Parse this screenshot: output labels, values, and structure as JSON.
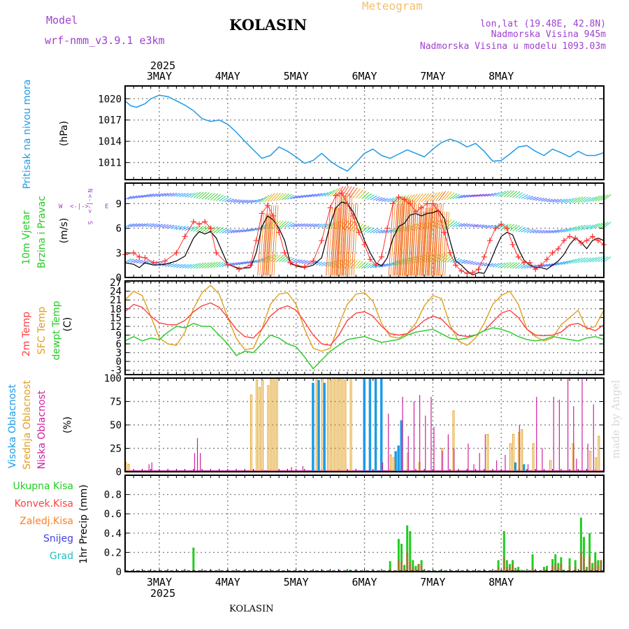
{
  "header": {
    "model_label": "Model",
    "model_name": "wrf-nmm_v3.9.1  e3km",
    "location": "KOLASIN",
    "title": "Meteogram",
    "coords": "lon,lat (19.48E, 42.8N)",
    "elevation": "Nadmorska Visina 945m",
    "model_elevation": "Nadmorska Visina u modelu 1093.03m",
    "footer_location": "KOLASIN",
    "watermark": "made by Angel"
  },
  "colors": {
    "model": "#a040d0",
    "title": "#f0c070",
    "pressure": "#1e9be6",
    "wind_label": "#22cc22",
    "wind_dir": "#a040d0",
    "t2m": "#ff4040",
    "sfc": "#e0a020",
    "dewpt": "#22cc22",
    "cloud_high": "#1e9be6",
    "cloud_mid": "#e0a020",
    "cloud_low": "#d020a0",
    "precip_total": "#22cc22",
    "precip_conv": "#ff4040",
    "precip_frz": "#ff8020",
    "precip_snow": "#4040e0",
    "precip_hail": "#20c0c0"
  },
  "time_axis": {
    "year": "2025",
    "days": [
      "3MAY",
      "4MAY",
      "5MAY",
      "6MAY",
      "7MAY",
      "8MAY"
    ]
  },
  "chart_data": [
    {
      "id": "pressure",
      "type": "line",
      "title": "Pritisak na nivou mora",
      "ylabel": "(hPa)",
      "yticks": [
        1011,
        1014,
        1017,
        1020
      ],
      "ylim": [
        1008.6,
        1021.8
      ],
      "x_hours": [
        0,
        2,
        4,
        7,
        9,
        12,
        15,
        18,
        21,
        24,
        27,
        30,
        33,
        36,
        39,
        42,
        45,
        48,
        51,
        54,
        57,
        60,
        63,
        66,
        69,
        72,
        75,
        78,
        81,
        84,
        87,
        90,
        93,
        96,
        99,
        102,
        105,
        108,
        111,
        114,
        117,
        120,
        123,
        126,
        129,
        132,
        135,
        138,
        141,
        144,
        147,
        150,
        153,
        156,
        159,
        162,
        165,
        168
      ],
      "values": [
        1019.7,
        1019.0,
        1018.8,
        1019.3,
        1020.0,
        1020.5,
        1020.3,
        1019.7,
        1019.1,
        1018.3,
        1017.2,
        1016.8,
        1017.0,
        1016.4,
        1015.3,
        1014.0,
        1012.8,
        1011.6,
        1012.0,
        1013.2,
        1012.6,
        1011.8,
        1010.9,
        1011.3,
        1012.3,
        1011.2,
        1010.4,
        1009.8,
        1011.0,
        1012.3,
        1012.9,
        1012.0,
        1011.6,
        1012.2,
        1012.8,
        1012.3,
        1011.8,
        1012.9,
        1013.8,
        1014.3,
        1013.9,
        1013.2,
        1013.7,
        1012.6,
        1011.2,
        1011.3,
        1012.2,
        1013.2,
        1013.4,
        1012.6,
        1012.0,
        1012.9,
        1012.4,
        1011.8,
        1012.6,
        1012.0,
        1012.0,
        1012.4
      ]
    },
    {
      "id": "wind",
      "type": "line",
      "title_line1": "10m Vjetar",
      "title_line2": "Brzina i Pravac",
      "ylabel": "(m/s)",
      "yticks": [
        0,
        3,
        6,
        9
      ],
      "ylim": [
        0,
        11.5
      ],
      "legend_west": "W",
      "legend_east": "E",
      "legend_north": "N",
      "legend_south": "S",
      "legend_arrows": "<-|->",
      "x_hours": [
        0,
        3,
        5,
        7,
        10,
        14,
        18,
        21,
        24,
        26,
        28,
        30,
        32,
        36,
        40,
        44,
        46,
        48,
        50,
        52,
        54,
        56,
        58,
        60,
        63,
        66,
        69,
        72,
        74,
        76,
        78,
        80,
        82,
        84,
        86,
        88,
        90,
        92,
        94,
        96,
        98,
        100,
        102,
        104,
        106,
        108,
        110,
        112,
        114,
        116,
        118,
        120,
        122,
        124,
        126,
        128,
        130,
        132,
        134,
        136,
        138,
        140,
        142,
        144,
        146,
        148,
        150,
        152,
        154,
        156,
        158,
        160,
        162,
        164,
        166,
        168
      ],
      "speed": [
        1.8,
        1.6,
        1.2,
        1.8,
        1.5,
        1.6,
        2.0,
        2.6,
        4.8,
        5.6,
        5.3,
        5.6,
        4.8,
        1.6,
        1.1,
        1.2,
        3.0,
        6.2,
        7.5,
        7.0,
        6.0,
        4.5,
        1.7,
        1.4,
        1.2,
        1.5,
        2.4,
        6.5,
        8.5,
        9.2,
        9.0,
        8.0,
        6.5,
        4.5,
        3.0,
        1.8,
        1.4,
        2.4,
        4.8,
        6.2,
        6.6,
        7.6,
        7.8,
        7.5,
        7.8,
        7.9,
        8.2,
        7.2,
        4.5,
        2.0,
        1.5,
        0.8,
        0.3,
        0.6,
        0.5,
        1.8,
        3.5,
        5.0,
        5.5,
        5.2,
        3.5,
        2.1,
        1.5,
        1.2,
        1.2,
        1.0,
        1.5,
        2.0,
        2.8,
        4.0,
        4.8,
        4.3,
        3.5,
        4.5,
        4.8,
        4.5
      ],
      "gust": [
        2.8,
        3.0,
        2.5,
        2.4,
        1.8,
        2.0,
        3.0,
        5.0,
        6.8,
        6.5,
        6.8,
        6.0,
        3.0,
        1.6,
        1.0,
        1.5,
        4.5,
        7.8,
        8.8,
        7.5,
        5.5,
        3.0,
        1.8,
        1.5,
        1.3,
        2.0,
        4.5,
        8.5,
        10.0,
        10.3,
        9.0,
        7.5,
        5.5,
        4.0,
        2.2,
        1.5,
        2.5,
        6.0,
        9.0,
        9.8,
        9.5,
        9.0,
        8.0,
        8.5,
        9.0,
        9.0,
        8.0,
        5.5,
        3.0,
        1.5,
        0.8,
        0.5,
        0.6,
        1.0,
        2.5,
        4.5,
        6.0,
        6.5,
        6.0,
        4.0,
        2.5,
        1.8,
        1.8,
        1.0,
        1.5,
        2.2,
        3.0,
        3.5,
        4.5,
        5.0,
        4.8,
        4.2,
        4.5,
        5.0,
        4.5,
        4.0
      ]
    },
    {
      "id": "temperature",
      "type": "line",
      "title_t2m": "2m Temp",
      "title_sfc": "SFC Temp",
      "title_dewpt": "dewpt Temp",
      "ylabel": "(C)",
      "yticks": [
        -3,
        0,
        3,
        6,
        9,
        12,
        15,
        18,
        21,
        24,
        27
      ],
      "ylim": [
        -4.5,
        27.5
      ],
      "x_hours": [
        0,
        3,
        6,
        9,
        12,
        15,
        18,
        21,
        24,
        27,
        30,
        33,
        36,
        39,
        42,
        45,
        48,
        51,
        54,
        57,
        60,
        63,
        66,
        69,
        72,
        75,
        78,
        81,
        84,
        87,
        90,
        93,
        96,
        99,
        102,
        105,
        108,
        111,
        114,
        117,
        120,
        123,
        126,
        129,
        132,
        135,
        138,
        141,
        144,
        147,
        150,
        153,
        156,
        159,
        162,
        165,
        168
      ],
      "t2m": [
        17.0,
        19.5,
        18.5,
        15.5,
        13.2,
        12.6,
        12.5,
        14.0,
        17.0,
        19.0,
        20.0,
        18.5,
        15.0,
        11.0,
        8.5,
        8.0,
        11.0,
        15.5,
        18.0,
        19.0,
        17.5,
        13.5,
        9.0,
        6.0,
        5.5,
        9.0,
        14.0,
        16.5,
        17.0,
        15.5,
        12.0,
        9.5,
        9.0,
        9.5,
        11.5,
        14.0,
        15.5,
        14.5,
        11.5,
        9.0,
        8.5,
        9.0,
        10.5,
        13.5,
        16.5,
        17.5,
        15.0,
        11.0,
        9.0,
        8.8,
        9.0,
        10.0,
        12.5,
        13.0,
        11.5,
        10.5,
        12.5
      ],
      "sfc": [
        21.0,
        24.0,
        22.5,
        15.5,
        8.0,
        6.0,
        5.5,
        10.0,
        18.0,
        23.5,
        26.0,
        23.0,
        15.0,
        8.0,
        4.0,
        4.5,
        11.0,
        19.5,
        23.0,
        23.5,
        19.5,
        11.0,
        4.5,
        3.5,
        4.5,
        12.5,
        19.5,
        23.0,
        23.5,
        20.5,
        13.0,
        8.5,
        8.0,
        9.5,
        13.0,
        19.0,
        22.5,
        21.5,
        12.5,
        7.0,
        5.5,
        8.0,
        13.0,
        19.5,
        22.5,
        24.0,
        19.5,
        11.0,
        8.5,
        7.0,
        8.0,
        12.5,
        15.0,
        17.5,
        11.0,
        12.0,
        17.5
      ],
      "dewpt": [
        7.0,
        8.5,
        7.0,
        8.0,
        7.5,
        10.0,
        12.0,
        11.5,
        13.0,
        12.0,
        12.0,
        9.0,
        6.0,
        2.0,
        3.5,
        3.0,
        6.0,
        9.0,
        8.0,
        6.0,
        5.0,
        1.5,
        -2.5,
        0.5,
        3.5,
        5.5,
        7.5,
        8.0,
        8.5,
        7.5,
        6.5,
        7.0,
        7.5,
        9.0,
        10.0,
        10.5,
        11.0,
        9.5,
        8.0,
        7.5,
        8.0,
        9.0,
        10.5,
        11.5,
        11.0,
        10.0,
        8.5,
        7.5,
        7.0,
        7.5,
        8.5,
        8.0,
        7.5,
        7.0,
        8.0,
        8.5,
        7.5
      ]
    },
    {
      "id": "clouds",
      "type": "bar",
      "title_high": "Visoka Oblacnost",
      "title_mid": "Srednja Oblacnost",
      "title_low": "Niska Oblacnost",
      "ylabel": "(%)",
      "yticks": [
        0,
        25,
        50,
        75,
        100
      ],
      "ylim": [
        0,
        100
      ],
      "high_hours": [
        66,
        68,
        70,
        84,
        86,
        88,
        90,
        95,
        96,
        97,
        137,
        140
      ],
      "high_values": [
        95,
        98,
        95,
        100,
        100,
        100,
        100,
        22,
        28,
        55,
        10,
        8
      ],
      "mid_hours": [
        0,
        1,
        44,
        46,
        47,
        48,
        50,
        51,
        52,
        53,
        67,
        69,
        71,
        72,
        73,
        74,
        75,
        76,
        77,
        79,
        93,
        94,
        99,
        103,
        111,
        115,
        127,
        135,
        136,
        138,
        139,
        143,
        149,
        157,
        163,
        165,
        166
      ],
      "mid_values": [
        10,
        8,
        82,
        98,
        90,
        98,
        92,
        100,
        100,
        100,
        100,
        100,
        100,
        98,
        100,
        100,
        100,
        100,
        98,
        100,
        18,
        15,
        20,
        10,
        25,
        65,
        40,
        30,
        40,
        42,
        45,
        30,
        12,
        30,
        22,
        15,
        38
      ],
      "low_hours": [
        8,
        9,
        24,
        25,
        26,
        58,
        62,
        90,
        92,
        97,
        99,
        101,
        103,
        105,
        107,
        108,
        111,
        113,
        115,
        120,
        122,
        124,
        126,
        130,
        133,
        138,
        141,
        144,
        146,
        150,
        152,
        155,
        157,
        158,
        160,
        162,
        164
      ],
      "low_values": [
        8,
        10,
        20,
        36,
        20,
        5,
        6,
        10,
        62,
        80,
        38,
        75,
        82,
        60,
        80,
        48,
        22,
        40,
        25,
        30,
        8,
        20,
        40,
        12,
        18,
        50,
        8,
        80,
        25,
        80,
        77,
        100,
        70,
        14,
        100,
        30,
        72
      ]
    },
    {
      "id": "precip",
      "type": "bar",
      "ylabel": "1hr Precip (mm)",
      "yticks": [
        0,
        0.2,
        0.4,
        0.6,
        0.8
      ],
      "ylim": [
        0,
        1.0
      ],
      "legend": [
        "Ukupna Kisa",
        "Konvek.Kisa",
        "Zaledj.Kisa",
        "Snijeg",
        "Grad"
      ],
      "hours": [
        24,
        79,
        93,
        96,
        97,
        98,
        99,
        100,
        101,
        102,
        103,
        104,
        105,
        111,
        131,
        133,
        134,
        135,
        136,
        137,
        138,
        139,
        143,
        147,
        148,
        150,
        151,
        152,
        153,
        154,
        156,
        158,
        160,
        161,
        162,
        163,
        164,
        165,
        166,
        167
      ],
      "total": [
        0.25,
        0.02,
        0.11,
        0.34,
        0.29,
        0.07,
        0.48,
        0.42,
        0.12,
        0.06,
        0.08,
        0.12,
        0.02,
        0.02,
        0.12,
        0.42,
        0.12,
        0.08,
        0.12,
        0.04,
        0.05,
        0.02,
        0.18,
        0.05,
        0.06,
        0.13,
        0.18,
        0.09,
        0.15,
        0.02,
        0.14,
        0.12,
        0.56,
        0.36,
        0.05,
        0.4,
        0.09,
        0.2,
        0.12,
        0.12
      ],
      "convective": [
        0.02,
        0.0,
        0.03,
        0.12,
        0.1,
        0.03,
        0.2,
        0.1,
        0.05,
        0.03,
        0.08,
        0.06,
        0.0,
        0.0,
        0.05,
        0.15,
        0.05,
        0.05,
        0.08,
        0.02,
        0.02,
        0.0,
        0.04,
        0.02,
        0.03,
        0.06,
        0.08,
        0.04,
        0.08,
        0.0,
        0.06,
        0.05,
        0.2,
        0.15,
        0.02,
        0.15,
        0.04,
        0.1,
        0.06,
        0.12
      ]
    }
  ]
}
